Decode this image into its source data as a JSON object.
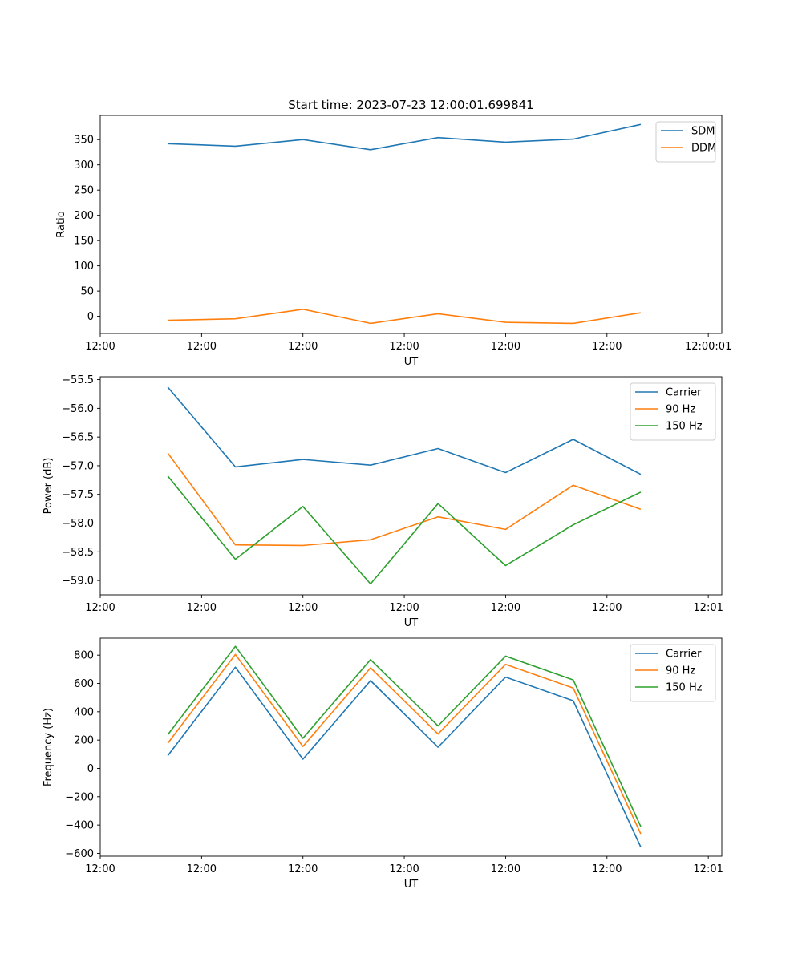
{
  "figure": {
    "title": "Start time: 2023-07-23 12:00:01.699841",
    "colors": {
      "blue": "#1f77b4",
      "orange": "#ff7f0e",
      "green": "#2ca02c"
    }
  },
  "chart_data": [
    {
      "type": "line",
      "title": "Start time: 2023-07-23 12:00:01.699841",
      "xlabel": "UT",
      "ylabel": "Ratio",
      "xlim": [
        0,
        9.2
      ],
      "ylim": [
        -34,
        398
      ],
      "x": [
        1,
        2,
        3,
        4,
        5,
        6,
        7,
        8
      ],
      "xticks": [
        0,
        1.5,
        3,
        4.5,
        6,
        7.5,
        9
      ],
      "xtick_labels": [
        "12:00",
        "12:00",
        "12:00",
        "12:00",
        "12:00",
        "12:00",
        "12:00:01"
      ],
      "yticks": [
        0,
        50,
        100,
        150,
        200,
        250,
        300,
        350
      ],
      "ytick_labels": [
        "0",
        "50",
        "100",
        "150",
        "200",
        "250",
        "300",
        "350"
      ],
      "legend_position": "top-right",
      "series": [
        {
          "name": "SDM",
          "color": "#1f77b4",
          "values": [
            342,
            337,
            350,
            330,
            354,
            345,
            351,
            380
          ]
        },
        {
          "name": "DDM",
          "color": "#ff7f0e",
          "values": [
            -8,
            -5,
            14,
            -14,
            5,
            -12,
            -14,
            7
          ]
        }
      ]
    },
    {
      "type": "line",
      "xlabel": "UT",
      "ylabel": "Power (dB)",
      "xlim": [
        0,
        9.2
      ],
      "ylim": [
        -59.25,
        -55.45
      ],
      "x": [
        1,
        2,
        3,
        4,
        5,
        6,
        7,
        8
      ],
      "xticks": [
        0,
        1.5,
        3,
        4.5,
        6,
        7.5,
        9
      ],
      "xtick_labels": [
        "12:00",
        "12:00",
        "12:00",
        "12:00",
        "12:00",
        "12:00",
        "12:01"
      ],
      "yticks": [
        -59.0,
        -58.5,
        -58.0,
        -57.5,
        -57.0,
        -56.5,
        -56.0,
        -55.5
      ],
      "ytick_labels": [
        "−59.0",
        "−58.5",
        "−58.0",
        "−57.5",
        "−57.0",
        "−56.5",
        "−56.0",
        "−55.5"
      ],
      "legend_position": "top-right",
      "series": [
        {
          "name": "Carrier",
          "color": "#1f77b4",
          "values": [
            -55.63,
            -57.02,
            -56.89,
            -56.99,
            -56.7,
            -57.12,
            -56.54,
            -57.15
          ]
        },
        {
          "name": "90 Hz",
          "color": "#ff7f0e",
          "values": [
            -56.78,
            -58.38,
            -58.39,
            -58.29,
            -57.89,
            -58.11,
            -57.34,
            -57.76
          ]
        },
        {
          "name": "150 Hz",
          "color": "#2ca02c",
          "values": [
            -57.18,
            -58.63,
            -57.71,
            -59.06,
            -57.66,
            -58.74,
            -58.03,
            -57.46
          ]
        }
      ]
    },
    {
      "type": "line",
      "xlabel": "UT",
      "ylabel": "Frequency (Hz)",
      "xlim": [
        0,
        9.2
      ],
      "ylim": [
        -620,
        920
      ],
      "x": [
        1,
        2,
        3,
        4,
        5,
        6,
        7,
        8
      ],
      "xticks": [
        0,
        1.5,
        3,
        4.5,
        6,
        7.5,
        9
      ],
      "xtick_labels": [
        "12:00",
        "12:00",
        "12:00",
        "12:00",
        "12:00",
        "12:00",
        "12:01"
      ],
      "yticks": [
        -600,
        -400,
        -200,
        0,
        200,
        400,
        600,
        800
      ],
      "ytick_labels": [
        "−600",
        "−400",
        "−200",
        "0",
        "200",
        "400",
        "600",
        "800"
      ],
      "legend_position": "top-right",
      "series": [
        {
          "name": "Carrier",
          "color": "#1f77b4",
          "values": [
            90,
            715,
            65,
            620,
            150,
            645,
            478,
            -555
          ]
        },
        {
          "name": "90 Hz",
          "color": "#ff7f0e",
          "values": [
            178,
            805,
            155,
            710,
            243,
            735,
            568,
            -462
          ]
        },
        {
          "name": "150 Hz",
          "color": "#2ca02c",
          "values": [
            238,
            862,
            213,
            768,
            300,
            793,
            625,
            -410
          ]
        }
      ]
    }
  ]
}
